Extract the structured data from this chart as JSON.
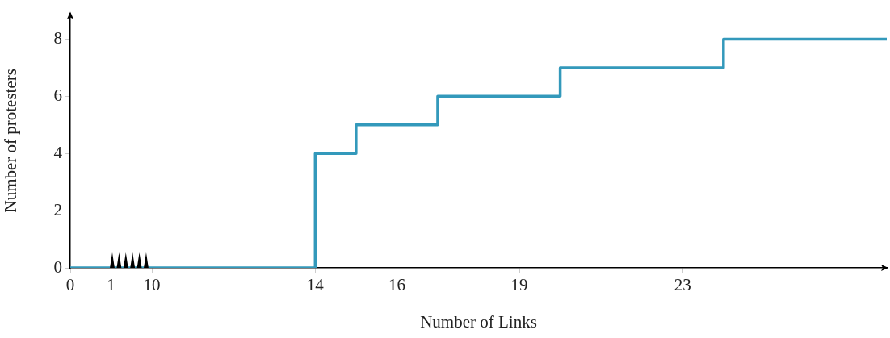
{
  "chart_data": {
    "type": "step",
    "xlabel": "Number of Links",
    "ylabel": "Number of protesters",
    "categories": [
      "0",
      "1",
      "10",
      null,
      null,
      null,
      "14",
      null,
      "16",
      null,
      null,
      "19",
      null,
      null,
      null,
      "23",
      null,
      null,
      null,
      null,
      null
    ],
    "series": [
      {
        "color": "#3399bb",
        "values": [
          0,
          0,
          0,
          0,
          0,
          0,
          4,
          5,
          5,
          6,
          6,
          6,
          7,
          7,
          7,
          7,
          8,
          8,
          8,
          8,
          8
        ]
      }
    ],
    "ylim": [
      0,
      8.9
    ],
    "yticks": [
      0,
      2,
      4,
      6,
      8
    ],
    "grid": false,
    "legend": false,
    "marker": "none",
    "line_style": "solid"
  }
}
